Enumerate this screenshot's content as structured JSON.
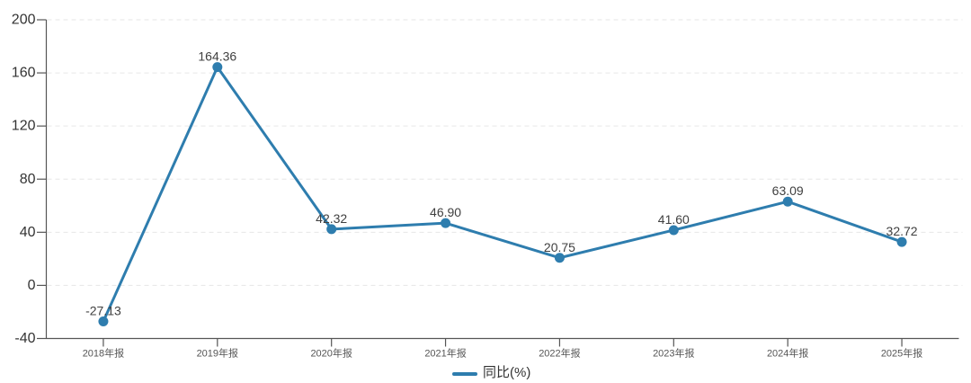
{
  "page": {
    "background": "#ffffff"
  },
  "chart_data": {
    "type": "line",
    "title": "",
    "categories": [
      "2018年报",
      "2019年报",
      "2020年报",
      "2021年报",
      "2022年报",
      "2023年报",
      "2024年报",
      "2025年报"
    ],
    "series": [
      {
        "name": "同比(%)",
        "values": [
          -27.13,
          164.36,
          42.32,
          46.9,
          20.75,
          41.6,
          63.09,
          32.72
        ],
        "labels": [
          "-27.13",
          "164.36",
          "42.32",
          "46.90",
          "20.75",
          "41.60",
          "63.09",
          "32.72"
        ]
      }
    ],
    "xlabel": "",
    "ylabel": "",
    "ylim": [
      -40,
      200
    ],
    "yticks": [
      200,
      160,
      120,
      80,
      40,
      0,
      -40
    ],
    "grid": "horizontal dashed lines",
    "legend_position": "bottom-center",
    "colors": {
      "line": "#2e7dae",
      "marker": "#2e7dae",
      "axis": "#555555",
      "gridline": "#e6e6e6",
      "y_tick_label": "#333333",
      "x_tick_label": "#555555",
      "data_label": "#404040",
      "legend_text": "#333333"
    }
  },
  "legend": {
    "label": "同比(%)"
  }
}
